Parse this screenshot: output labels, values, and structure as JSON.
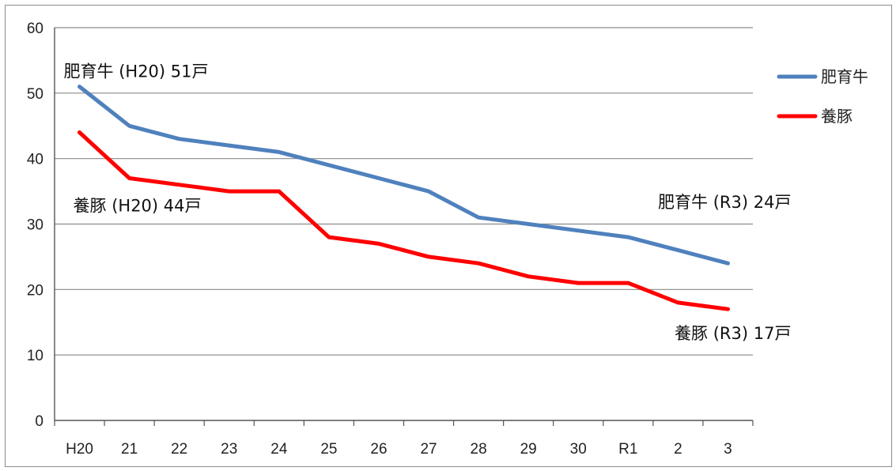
{
  "chart_data": {
    "type": "line",
    "title": "",
    "xlabel": "",
    "ylabel": "",
    "categories": [
      "H20",
      "21",
      "22",
      "23",
      "24",
      "25",
      "26",
      "27",
      "28",
      "29",
      "30",
      "R1",
      "2",
      "3"
    ],
    "ylim": [
      0,
      60
    ],
    "yticks": [
      0,
      10,
      20,
      30,
      40,
      50,
      60
    ],
    "grid": "horizontal",
    "legend_position": "right",
    "series": [
      {
        "name": "肥育牛",
        "color": "#4f81bd",
        "values": [
          51,
          45,
          43,
          42,
          41,
          39,
          37,
          35,
          31,
          30,
          29,
          28,
          26,
          24
        ]
      },
      {
        "name": "養豚",
        "color": "#ff0000",
        "values": [
          44,
          37,
          36,
          35,
          35,
          28,
          27,
          25,
          24,
          22,
          21,
          21,
          18,
          17
        ]
      }
    ],
    "annotations": [
      {
        "text": "肥育牛 (H20) 51戸",
        "series": 0,
        "category": "H20"
      },
      {
        "text": "養豚 (H20) 44戸",
        "series": 1,
        "category": "H20"
      },
      {
        "text": "肥育牛 (R3) 24戸",
        "series": 0,
        "category": "3"
      },
      {
        "text": "養豚 (R3) 17戸",
        "series": 1,
        "category": "3"
      }
    ]
  }
}
